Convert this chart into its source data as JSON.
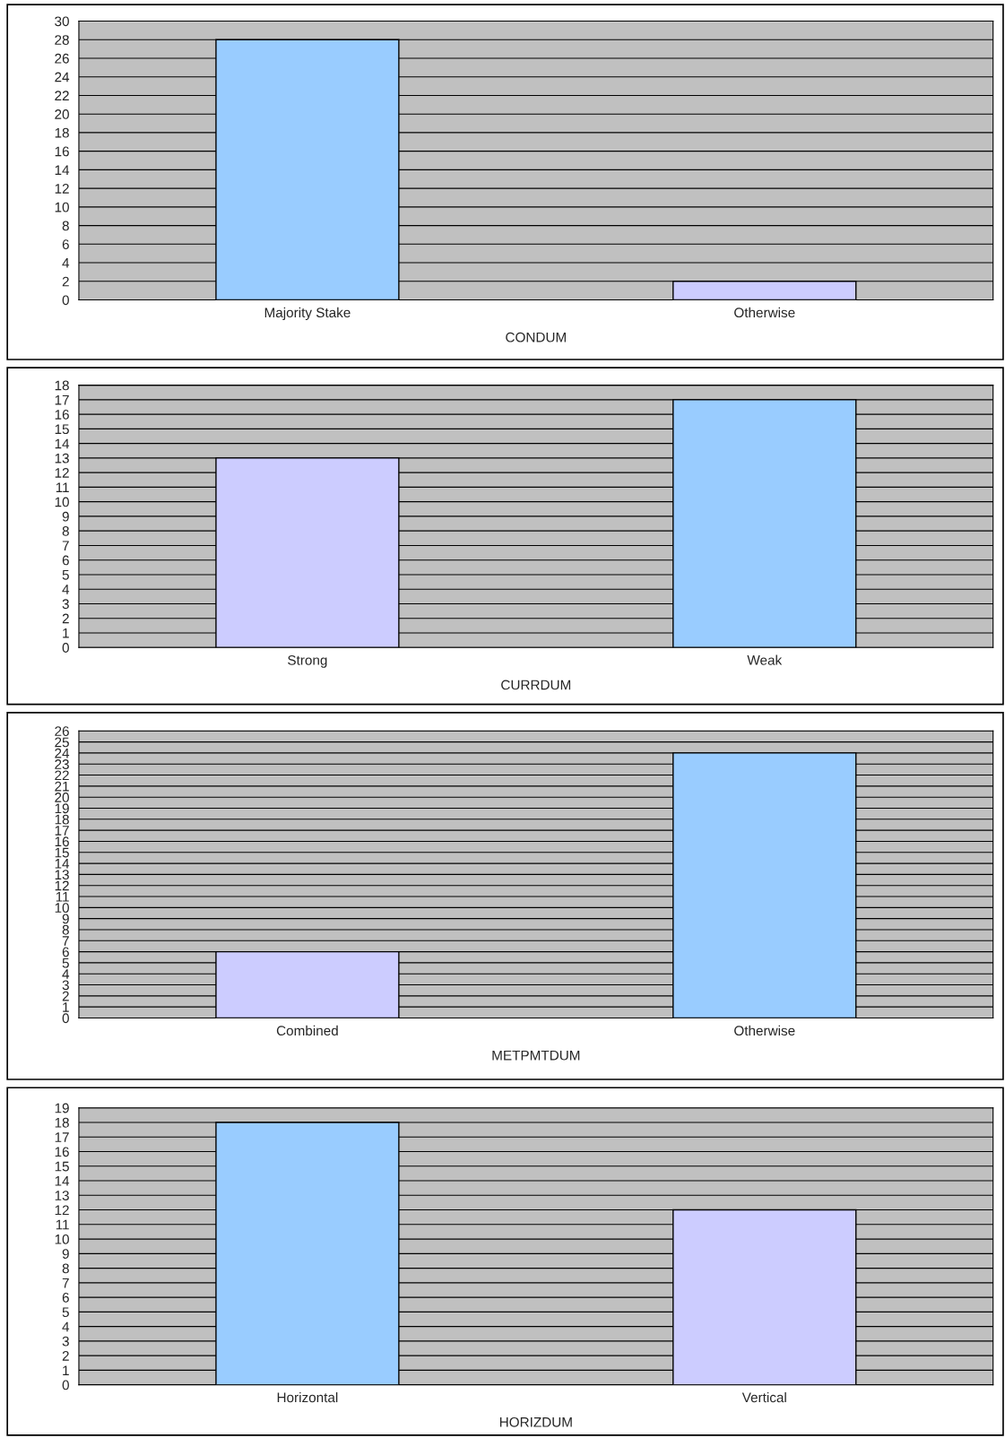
{
  "chart_data": [
    {
      "type": "bar",
      "categories": [
        "Majority Stake",
        "Otherwise"
      ],
      "values": [
        28,
        2
      ],
      "colors": [
        "#99ccff",
        "#ccccff"
      ],
      "xlabel": "CONDUM",
      "ylim": [
        0,
        30
      ],
      "yticks": [
        0,
        2,
        4,
        6,
        8,
        10,
        12,
        14,
        16,
        18,
        20,
        22,
        24,
        26,
        28,
        30
      ],
      "grid": "y"
    },
    {
      "type": "bar",
      "categories": [
        "Strong",
        "Weak"
      ],
      "values": [
        13,
        17
      ],
      "colors": [
        "#ccccff",
        "#99ccff"
      ],
      "xlabel": "CURRDUM",
      "ylim": [
        0,
        18
      ],
      "yticks": [
        0,
        1,
        2,
        3,
        4,
        5,
        6,
        7,
        8,
        9,
        10,
        11,
        12,
        13,
        14,
        15,
        16,
        17,
        18
      ],
      "grid": "y"
    },
    {
      "type": "bar",
      "categories": [
        "Combined",
        "Otherwise"
      ],
      "values": [
        6,
        24
      ],
      "colors": [
        "#ccccff",
        "#99ccff"
      ],
      "xlabel": "METPMTDUM",
      "ylim": [
        0,
        26
      ],
      "yticks": [
        0,
        1,
        2,
        3,
        4,
        5,
        6,
        7,
        8,
        9,
        10,
        11,
        12,
        13,
        14,
        15,
        16,
        17,
        18,
        19,
        20,
        21,
        22,
        23,
        24,
        25,
        26
      ],
      "grid": "y"
    },
    {
      "type": "bar",
      "categories": [
        "Horizontal",
        "Vertical"
      ],
      "values": [
        18,
        12
      ],
      "colors": [
        "#99ccff",
        "#ccccff"
      ],
      "xlabel": "HORIZDUM",
      "ylim": [
        0,
        19
      ],
      "yticks": [
        0,
        1,
        2,
        3,
        4,
        5,
        6,
        7,
        8,
        9,
        10,
        11,
        12,
        13,
        14,
        15,
        16,
        17,
        18,
        19
      ],
      "grid": "y"
    }
  ]
}
